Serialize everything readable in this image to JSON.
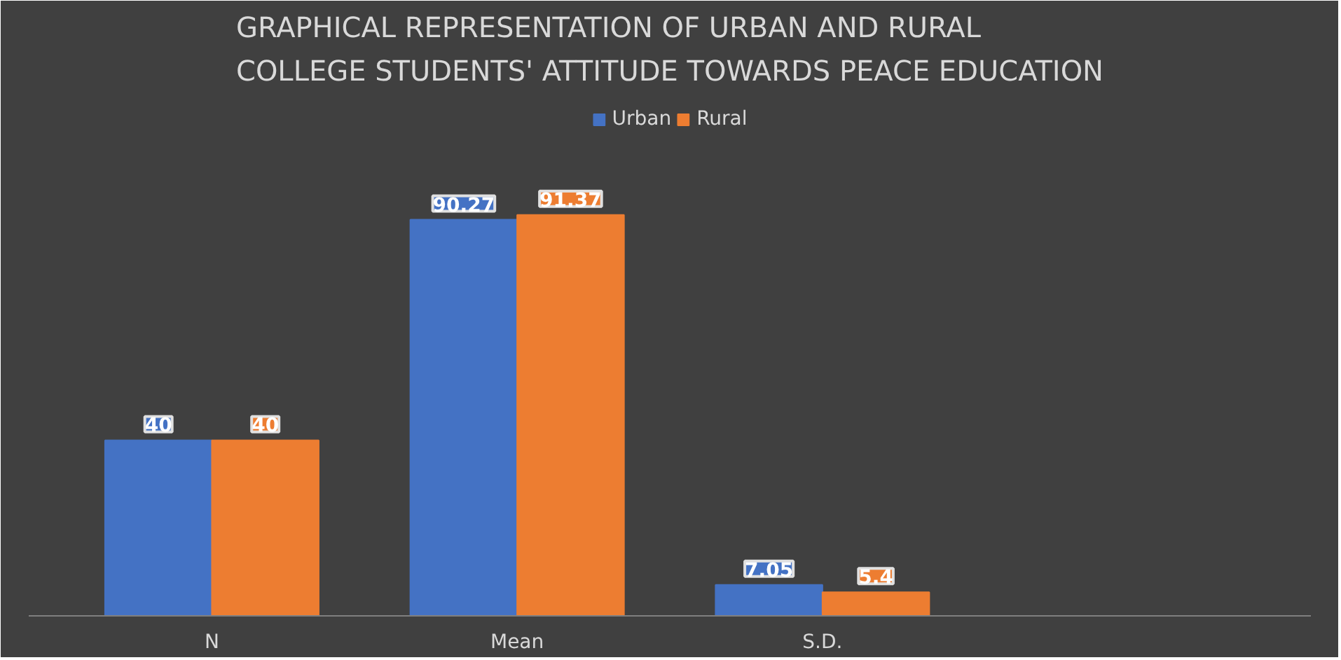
{
  "chart_data": {
    "type": "bar",
    "title": "GRAPHICAL REPRESENTATION OF URBAN AND RURAL COLLEGE STUDENTS' ATTITUDE TOWARDS PEACE EDUCATION",
    "categories": [
      "N",
      "Mean",
      "S.D."
    ],
    "series": [
      {
        "name": "Urban",
        "color": "#4472c4",
        "values": [
          40,
          90.27,
          7.05
        ]
      },
      {
        "name": "Rural",
        "color": "#ed7d31",
        "values": [
          40,
          91.37,
          5.4
        ]
      }
    ],
    "data_labels": true,
    "legend": "top",
    "grid": false,
    "tick_labels": "x"
  }
}
